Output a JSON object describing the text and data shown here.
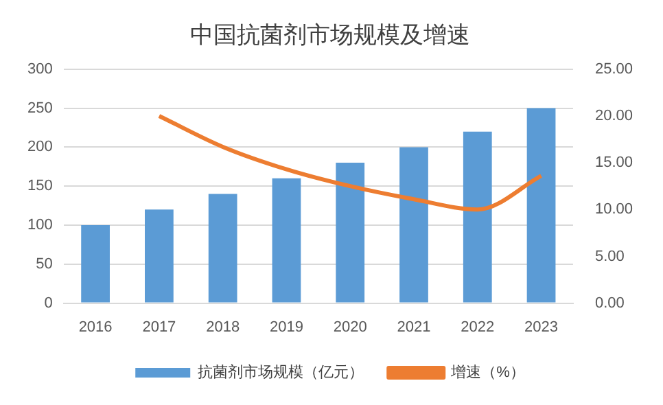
{
  "chart_data": {
    "type": "bar",
    "title": "中国抗菌剂市场规模及增速",
    "categories": [
      "2016",
      "2017",
      "2018",
      "2019",
      "2020",
      "2021",
      "2022",
      "2023"
    ],
    "series": [
      {
        "name": "抗菌剂市场规模（亿元）",
        "color": "#5b9bd5",
        "values": [
          100,
          120,
          140,
          160,
          180,
          200,
          220,
          250
        ]
      },
      {
        "name": "增速（%）",
        "type": "line",
        "axis": "y2",
        "color": "#ed7d31",
        "values": [
          null,
          20.0,
          16.7,
          14.3,
          12.5,
          11.1,
          10.0,
          13.6
        ],
        "marker": "none"
      }
    ],
    "ylim": [
      0,
      300
    ],
    "yticks": [
      0,
      50,
      100,
      150,
      200,
      250,
      300
    ],
    "y2lim": [
      0,
      25
    ],
    "y2ticks": [
      {
        "value": 0,
        "label": "0.00"
      },
      {
        "value": 5,
        "label": "5.00"
      },
      {
        "value": 10,
        "label": "10.00"
      },
      {
        "value": 15,
        "label": "15.00"
      },
      {
        "value": 20,
        "label": "20.00"
      },
      {
        "value": 25,
        "label": "25.00"
      }
    ],
    "grid": "y",
    "legend": "bottom"
  }
}
